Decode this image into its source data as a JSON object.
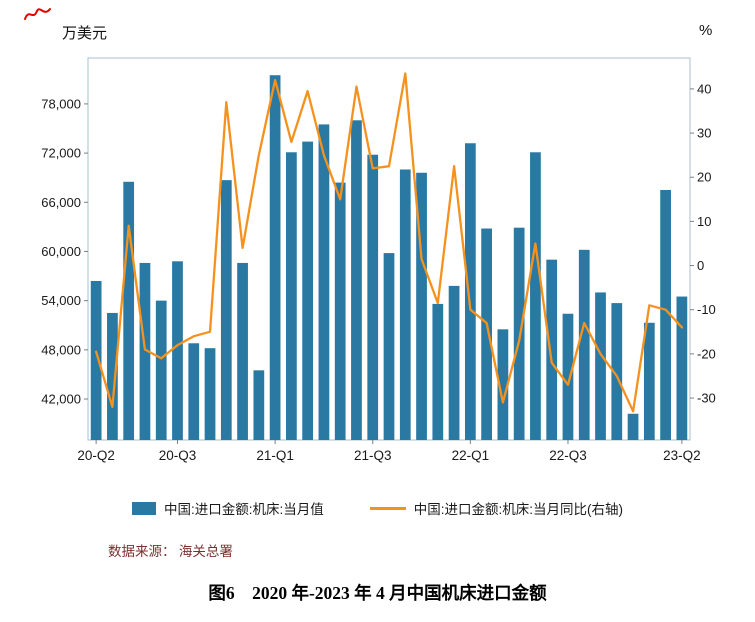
{
  "page": {
    "y_axis_left_title": "万美元",
    "y_axis_right_title": "%",
    "source_note": "数据来源： 海关总署",
    "caption": "图6　2020 年-2023 年 4 月中国机床进口金额"
  },
  "legend": {
    "bar_label": "中国:进口金额:机床:当月值",
    "line_label": "中国:进口金额:机床:当月同比(右轴)"
  },
  "colors": {
    "bar": "#2979a3",
    "line": "#f5921e",
    "frame": "#a9c0cf",
    "tick": "#7f7f7f",
    "text": "#1a1a1a",
    "red_mark": "#e60000"
  },
  "chart_data": {
    "type": "bar",
    "title": "图6 2020年-2023年4月中国机床进口金额",
    "grid": false,
    "legend_position": "bottom",
    "x": [
      "2020-04",
      "2020-05",
      "2020-06",
      "2020-07",
      "2020-08",
      "2020-09",
      "2020-10",
      "2020-11",
      "2020-12",
      "2021-01",
      "2021-02",
      "2021-03",
      "2021-04",
      "2021-05",
      "2021-06",
      "2021-07",
      "2021-08",
      "2021-09",
      "2021-10",
      "2021-11",
      "2021-12",
      "2022-01",
      "2022-02",
      "2022-03",
      "2022-04",
      "2022-05",
      "2022-06",
      "2022-07",
      "2022-08",
      "2022-09",
      "2022-10",
      "2022-11",
      "2022-12",
      "2023-01",
      "2023-02",
      "2023-03",
      "2023-04"
    ],
    "series": [
      {
        "name": "中国:进口金额:机床:当月值",
        "type": "bar",
        "axis": "left",
        "unit": "万美元",
        "values": [
          56400,
          52500,
          68500,
          58600,
          54000,
          58800,
          48800,
          48200,
          68700,
          58600,
          45500,
          81500,
          72100,
          73400,
          75500,
          68400,
          76000,
          71800,
          59800,
          70000,
          69600,
          53600,
          55800,
          73200,
          62800,
          50500,
          62900,
          72100,
          59000,
          52400,
          60200,
          55000,
          53700,
          40200,
          51300,
          67500,
          54500
        ]
      },
      {
        "name": "中国:进口金额:机床:当月同比(右轴)",
        "type": "line",
        "axis": "right",
        "unit": "%",
        "values": [
          -19.5,
          -32,
          9,
          -19,
          -21,
          -18,
          -16,
          -15,
          37,
          4,
          25,
          42,
          28,
          39.5,
          25,
          15,
          40.5,
          22,
          22.5,
          43.5,
          1.5,
          -8.5,
          22.5,
          -10,
          -13,
          -31,
          -17,
          5,
          -22,
          -27,
          -13,
          -20,
          -25,
          -33,
          -9,
          -10,
          -14
        ]
      }
    ],
    "left_axis": {
      "label": "万美元",
      "min": 37000,
      "max": 83600,
      "ticks": [
        78000,
        72000,
        66000,
        60000,
        54000,
        48000,
        42000
      ],
      "tick_labels": [
        "78,000",
        "72,000",
        "66,000",
        "60,000",
        "54,000",
        "48,000",
        "42,000"
      ]
    },
    "right_axis": {
      "label": "%",
      "min": -39.5,
      "max": 47,
      "ticks": [
        40,
        30,
        20,
        10,
        0,
        -10,
        -20,
        -30
      ],
      "tick_labels": [
        "40",
        "30",
        "20",
        "10",
        "0",
        "-10",
        "-20",
        "-30"
      ]
    },
    "x_tick_positions": [
      0,
      5,
      11,
      17,
      23,
      29,
      36
    ],
    "x_tick_labels": [
      "20-Q2",
      "20-Q3",
      "21-Q1",
      "21-Q3",
      "22-Q1",
      "22-Q3",
      "23-Q2"
    ]
  }
}
